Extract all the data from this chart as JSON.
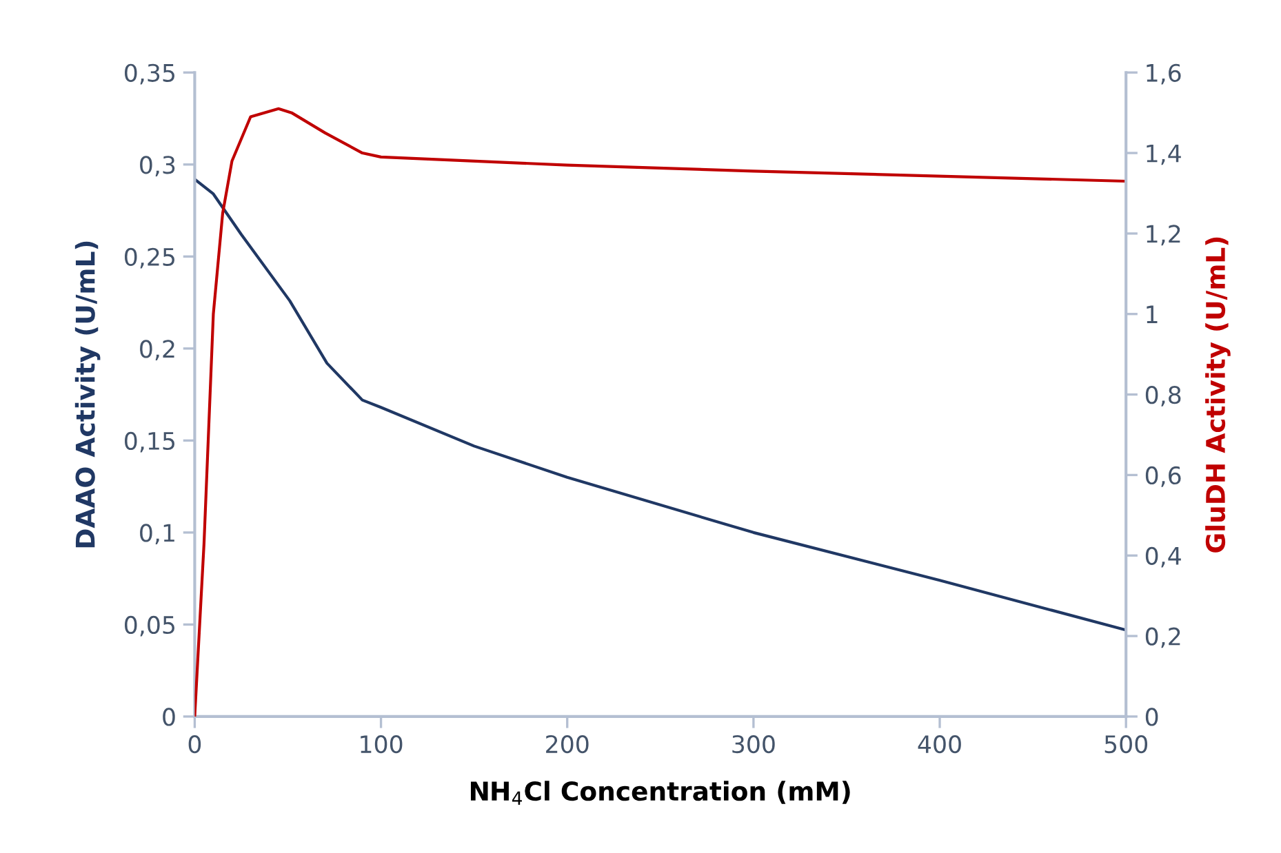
{
  "chart_data": {
    "type": "line",
    "xlabel": "NH$_{4}$Cl Concentration (mM)",
    "ylabel": "DAAO Activity (U/mL)",
    "y2label": "GluDH Activity (U/mL)",
    "xlim": [
      0,
      500
    ],
    "xticks": [
      0,
      100,
      200,
      300,
      400,
      500
    ],
    "ylim": [
      0,
      0.35
    ],
    "yticks": [
      0,
      {
        "value": 0.05,
        "label": "0,05"
      },
      {
        "value": 0.1,
        "label": "0,1"
      },
      {
        "value": 0.15,
        "label": "0,15"
      },
      {
        "value": 0.2,
        "label": "0,2"
      },
      {
        "value": 0.25,
        "label": "0,25"
      },
      {
        "value": 0.3,
        "label": "0,3"
      },
      {
        "value": 0.35,
        "label": "0,35"
      }
    ],
    "y2lim": [
      0,
      1.6
    ],
    "y2ticks": [
      0,
      {
        "value": 0.2,
        "label": "0,2"
      },
      {
        "value": 0.4,
        "label": "0,4"
      },
      {
        "value": 0.6,
        "label": "0,6"
      },
      {
        "value": 0.8,
        "label": "0,8"
      },
      1,
      {
        "value": 1.2,
        "label": "1,2"
      },
      {
        "value": 1.4,
        "label": "1,4"
      },
      {
        "value": 1.6,
        "label": "1,6"
      }
    ],
    "grid": false,
    "marker": "none",
    "line_style": "solid",
    "series": [
      {
        "color": "#203864",
        "x": [
          0,
          10,
          25,
          51,
          71,
          90,
          100,
          150,
          200,
          300,
          400,
          500
        ],
        "values": [
          0.292,
          0.284,
          0.262,
          0.226,
          0.192,
          0.172,
          0.168,
          0.147,
          0.13,
          0.1,
          0.074,
          0.047
        ]
      },
      {
        "color": "#c00000",
        "axis": "y2",
        "x": [
          0,
          5,
          10,
          15,
          20,
          30,
          45,
          52,
          70,
          90,
          100,
          200,
          300,
          500
        ],
        "values": [
          0,
          0.43,
          1.0,
          1.25,
          1.38,
          1.49,
          1.51,
          1.5,
          1.45,
          1.4,
          1.39,
          1.37,
          1.355,
          1.33
        ]
      }
    ]
  }
}
